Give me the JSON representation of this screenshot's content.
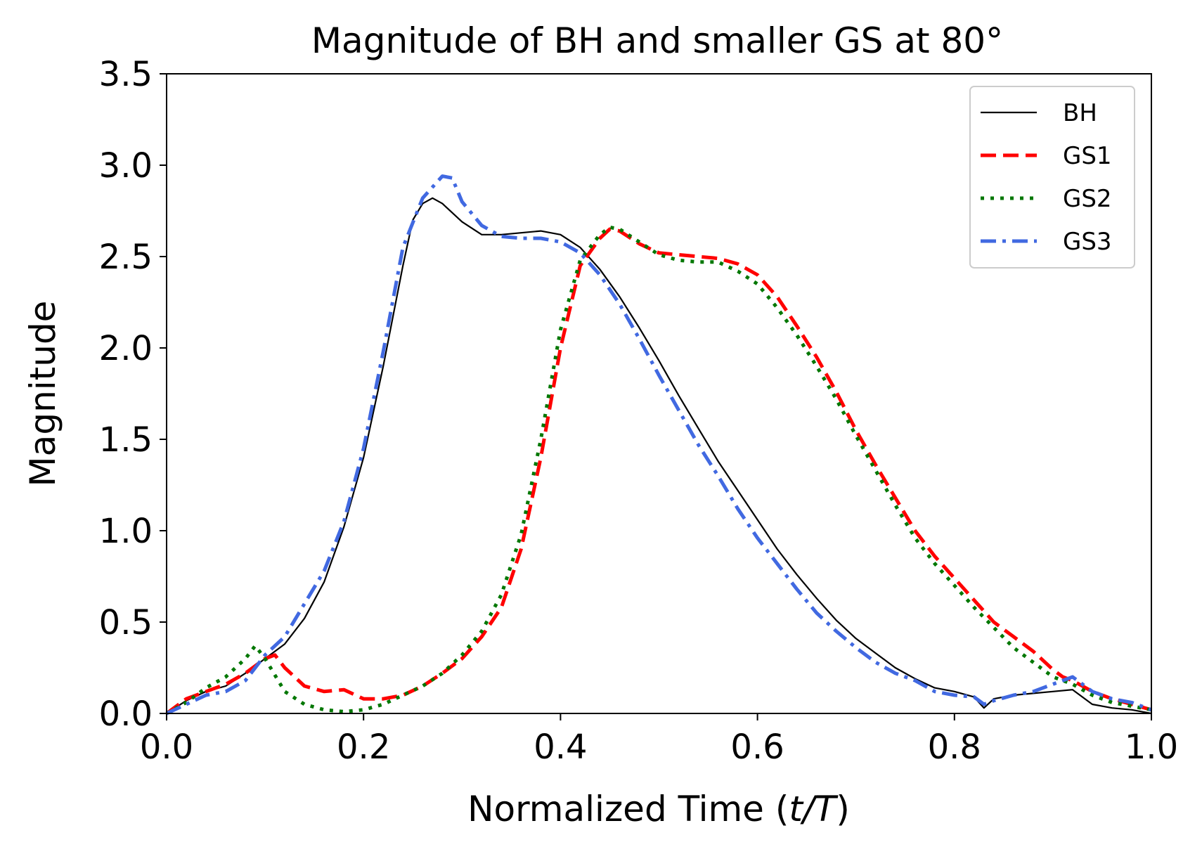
{
  "chart_data": {
    "type": "line",
    "title": "Magnitude of BH and smaller GS at 80°",
    "xlabel_main": "Normalized Time (",
    "xlabel_var": "t/T",
    "xlabel_end": ")",
    "ylabel": "Magnitude",
    "xlim": [
      0.0,
      1.0
    ],
    "ylim": [
      0.0,
      3.5
    ],
    "xticks": [
      0.0,
      0.2,
      0.4,
      0.6,
      0.8,
      1.0
    ],
    "xtick_labels": [
      "0.0",
      "0.2",
      "0.4",
      "0.6",
      "0.8",
      "1.0"
    ],
    "yticks": [
      0.0,
      0.5,
      1.0,
      1.5,
      2.0,
      2.5,
      3.0,
      3.5
    ],
    "ytick_labels": [
      "0.0",
      "0.5",
      "1.0",
      "1.5",
      "2.0",
      "2.5",
      "3.0",
      "3.5"
    ],
    "legend_position": "top-right",
    "series": [
      {
        "name": "BH",
        "color": "#000000",
        "style": "solid",
        "x": [
          0.0,
          0.02,
          0.04,
          0.06,
          0.08,
          0.1,
          0.12,
          0.14,
          0.16,
          0.18,
          0.2,
          0.22,
          0.24,
          0.25,
          0.26,
          0.27,
          0.28,
          0.3,
          0.32,
          0.34,
          0.36,
          0.38,
          0.4,
          0.42,
          0.44,
          0.46,
          0.48,
          0.5,
          0.52,
          0.54,
          0.56,
          0.58,
          0.6,
          0.62,
          0.64,
          0.66,
          0.68,
          0.7,
          0.72,
          0.74,
          0.76,
          0.78,
          0.8,
          0.82,
          0.83,
          0.84,
          0.86,
          0.88,
          0.9,
          0.92,
          0.94,
          0.96,
          0.98,
          1.0
        ],
        "y": [
          0.0,
          0.07,
          0.12,
          0.15,
          0.22,
          0.3,
          0.38,
          0.52,
          0.72,
          1.02,
          1.4,
          1.9,
          2.45,
          2.7,
          2.79,
          2.82,
          2.79,
          2.69,
          2.62,
          2.62,
          2.63,
          2.64,
          2.62,
          2.55,
          2.43,
          2.28,
          2.11,
          1.93,
          1.74,
          1.56,
          1.38,
          1.22,
          1.06,
          0.9,
          0.76,
          0.63,
          0.51,
          0.41,
          0.33,
          0.25,
          0.19,
          0.14,
          0.12,
          0.09,
          0.03,
          0.08,
          0.1,
          0.11,
          0.12,
          0.13,
          0.05,
          0.03,
          0.02,
          0.0
        ]
      },
      {
        "name": "GS1",
        "color": "#ff0000",
        "style": "dashed",
        "x": [
          0.0,
          0.02,
          0.04,
          0.06,
          0.08,
          0.1,
          0.11,
          0.12,
          0.14,
          0.16,
          0.18,
          0.2,
          0.22,
          0.24,
          0.26,
          0.28,
          0.3,
          0.32,
          0.34,
          0.36,
          0.38,
          0.4,
          0.42,
          0.44,
          0.45,
          0.46,
          0.48,
          0.5,
          0.52,
          0.54,
          0.56,
          0.58,
          0.6,
          0.62,
          0.64,
          0.66,
          0.68,
          0.7,
          0.72,
          0.74,
          0.76,
          0.78,
          0.8,
          0.82,
          0.84,
          0.86,
          0.88,
          0.9,
          0.91,
          0.92,
          0.94,
          0.96,
          0.98,
          1.0
        ],
        "y": [
          0.0,
          0.08,
          0.12,
          0.16,
          0.22,
          0.3,
          0.32,
          0.25,
          0.15,
          0.12,
          0.13,
          0.08,
          0.08,
          0.1,
          0.15,
          0.22,
          0.3,
          0.42,
          0.58,
          0.9,
          1.4,
          2.0,
          2.45,
          2.6,
          2.65,
          2.64,
          2.57,
          2.52,
          2.51,
          2.5,
          2.49,
          2.46,
          2.4,
          2.28,
          2.12,
          1.95,
          1.76,
          1.55,
          1.36,
          1.18,
          1.0,
          0.86,
          0.74,
          0.62,
          0.5,
          0.42,
          0.34,
          0.24,
          0.2,
          0.18,
          0.12,
          0.08,
          0.05,
          0.02
        ]
      },
      {
        "name": "GS2",
        "color": "#007700",
        "style": "dotted",
        "x": [
          0.0,
          0.02,
          0.04,
          0.06,
          0.08,
          0.09,
          0.1,
          0.12,
          0.14,
          0.16,
          0.18,
          0.2,
          0.22,
          0.24,
          0.26,
          0.28,
          0.3,
          0.32,
          0.34,
          0.36,
          0.38,
          0.4,
          0.42,
          0.44,
          0.45,
          0.46,
          0.48,
          0.5,
          0.52,
          0.54,
          0.56,
          0.58,
          0.6,
          0.62,
          0.64,
          0.66,
          0.68,
          0.7,
          0.72,
          0.74,
          0.76,
          0.78,
          0.8,
          0.82,
          0.84,
          0.86,
          0.88,
          0.9,
          0.92,
          0.94,
          0.96,
          0.98,
          1.0
        ],
        "y": [
          0.0,
          0.06,
          0.14,
          0.2,
          0.3,
          0.37,
          0.3,
          0.12,
          0.05,
          0.02,
          0.01,
          0.02,
          0.05,
          0.1,
          0.15,
          0.22,
          0.32,
          0.45,
          0.65,
          0.98,
          1.5,
          2.1,
          2.48,
          2.62,
          2.66,
          2.65,
          2.58,
          2.51,
          2.48,
          2.47,
          2.47,
          2.42,
          2.35,
          2.22,
          2.07,
          1.9,
          1.72,
          1.52,
          1.33,
          1.14,
          0.96,
          0.82,
          0.7,
          0.58,
          0.47,
          0.36,
          0.28,
          0.2,
          0.16,
          0.1,
          0.06,
          0.04,
          0.02
        ]
      },
      {
        "name": "GS3",
        "color": "#4169e1",
        "style": "dashdot",
        "x": [
          0.0,
          0.02,
          0.04,
          0.06,
          0.08,
          0.1,
          0.12,
          0.14,
          0.16,
          0.18,
          0.2,
          0.22,
          0.24,
          0.26,
          0.27,
          0.28,
          0.29,
          0.3,
          0.32,
          0.34,
          0.36,
          0.38,
          0.4,
          0.42,
          0.44,
          0.46,
          0.48,
          0.5,
          0.52,
          0.54,
          0.56,
          0.58,
          0.6,
          0.62,
          0.64,
          0.66,
          0.68,
          0.7,
          0.72,
          0.74,
          0.76,
          0.78,
          0.8,
          0.82,
          0.83,
          0.84,
          0.86,
          0.88,
          0.9,
          0.92,
          0.94,
          0.96,
          0.98,
          1.0
        ],
        "y": [
          0.0,
          0.05,
          0.1,
          0.12,
          0.18,
          0.32,
          0.42,
          0.6,
          0.78,
          1.05,
          1.45,
          1.98,
          2.55,
          2.82,
          2.88,
          2.94,
          2.93,
          2.8,
          2.67,
          2.61,
          2.6,
          2.6,
          2.58,
          2.52,
          2.4,
          2.24,
          2.05,
          1.85,
          1.66,
          1.47,
          1.3,
          1.12,
          0.96,
          0.82,
          0.68,
          0.55,
          0.45,
          0.36,
          0.28,
          0.22,
          0.18,
          0.12,
          0.1,
          0.09,
          0.05,
          0.07,
          0.1,
          0.12,
          0.16,
          0.2,
          0.12,
          0.08,
          0.06,
          0.02
        ]
      }
    ]
  }
}
